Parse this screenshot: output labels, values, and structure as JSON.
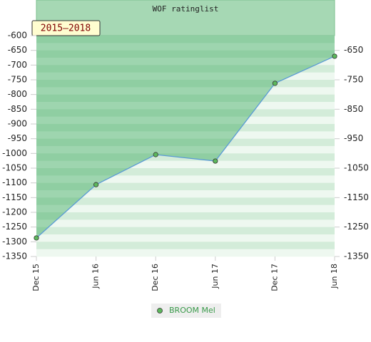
{
  "chart_data": {
    "type": "line",
    "title": "WOF ratinglist",
    "annotation": "2015–2018",
    "categories": [
      "Dec 15",
      "Jun 16",
      "Dec 16",
      "Jun 17",
      "Dec 17",
      "Jun 18"
    ],
    "series": [
      {
        "name": "BROOM Mel",
        "color": "#5b9bd5",
        "marker_color": "#5cb85c",
        "values": [
          -1287,
          -1106,
          -1004,
          -1026,
          -762,
          -670
        ]
      }
    ],
    "ylim": [
      -1350,
      -600
    ],
    "yticks": [
      -600,
      -650,
      -700,
      -750,
      -800,
      -850,
      -900,
      -950,
      -1000,
      -1050,
      -1100,
      -1150,
      -1200,
      -1250,
      -1300,
      -1350
    ],
    "y2lim": [
      -1350,
      -600
    ],
    "y2ticks": [
      -650,
      -750,
      -850,
      -950,
      -1050,
      -1150,
      -1250,
      -1350
    ],
    "fill_above": true
  }
}
